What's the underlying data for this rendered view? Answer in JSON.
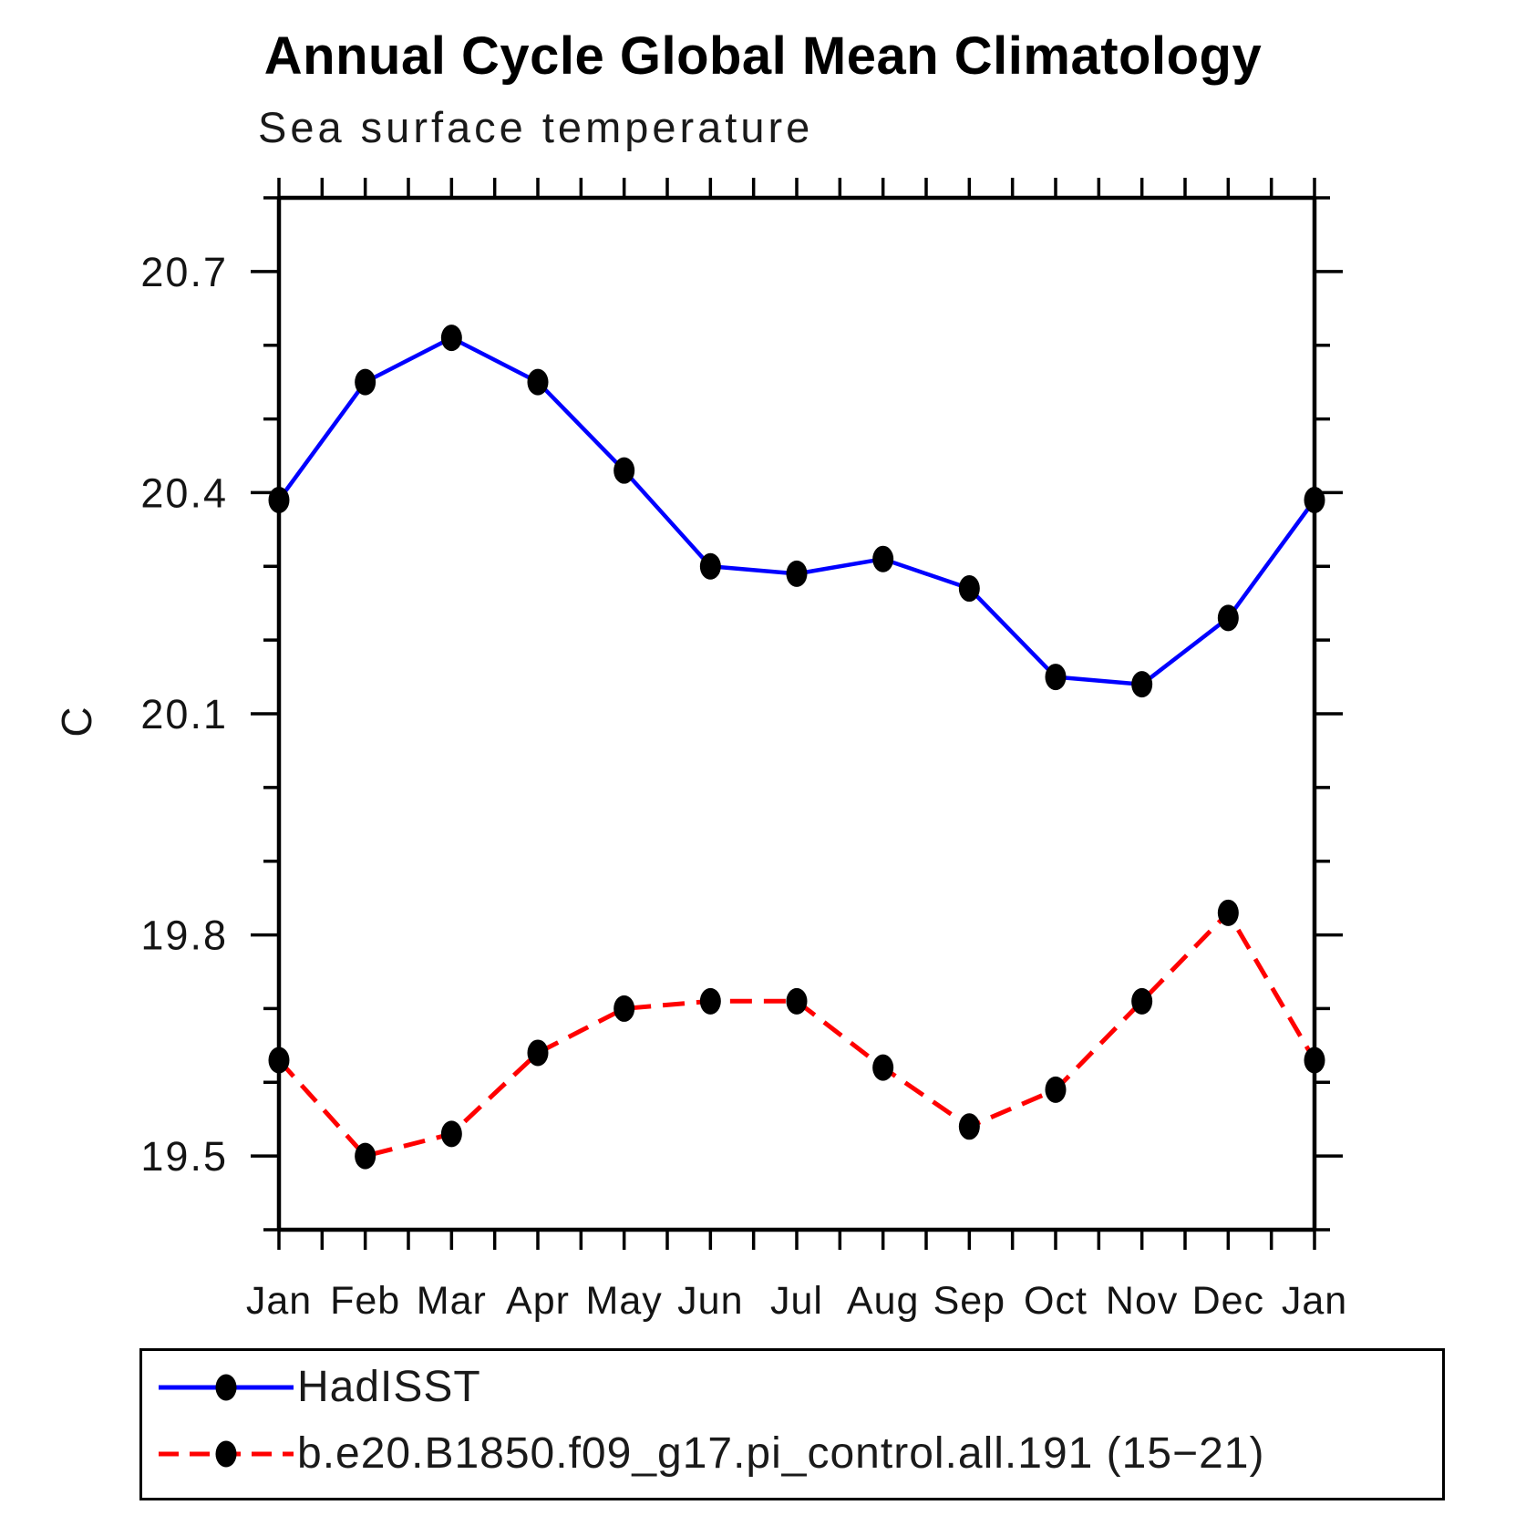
{
  "title": "Annual Cycle Global Mean Climatology",
  "subtitle": "Sea surface temperature",
  "colors": {
    "hadisst_line": "#0000ff",
    "model_line": "#ff0000",
    "marker": "#000000",
    "axis": "#000000"
  },
  "chart_data": {
    "type": "line",
    "categories": [
      "Jan",
      "Feb",
      "Mar",
      "Apr",
      "May",
      "Jun",
      "Jul",
      "Aug",
      "Sep",
      "Oct",
      "Nov",
      "Dec",
      "Jan"
    ],
    "series": [
      {
        "name": "HadISST",
        "color": "#0000ff",
        "style": "solid",
        "marker": "filled-circle",
        "marker_color": "#000000",
        "values": [
          20.39,
          20.55,
          20.61,
          20.55,
          20.43,
          20.3,
          20.29,
          20.31,
          20.27,
          20.15,
          20.14,
          20.23,
          20.39
        ]
      },
      {
        "name": "b.e20.B1850.f09_g17.pi_control.all.191 (15−21)",
        "color": "#ff0000",
        "style": "dashed",
        "marker": "filled-circle",
        "marker_color": "#000000",
        "values": [
          19.63,
          19.5,
          19.53,
          19.64,
          19.7,
          19.71,
          19.71,
          19.62,
          19.54,
          19.59,
          19.71,
          19.83,
          19.63
        ]
      }
    ],
    "xlabel": "",
    "ylabel": "C",
    "ylim": [
      19.4,
      20.8
    ],
    "y_major_ticks": [
      19.5,
      19.8,
      20.1,
      20.4,
      20.7
    ],
    "y_tick_labels": [
      "19.5",
      "19.8",
      "20.1",
      "20.4",
      "20.7"
    ],
    "y_minor_step": 0.1,
    "x_minor_ticks_per_month": 2,
    "grid": false,
    "legend_position": "bottom"
  }
}
